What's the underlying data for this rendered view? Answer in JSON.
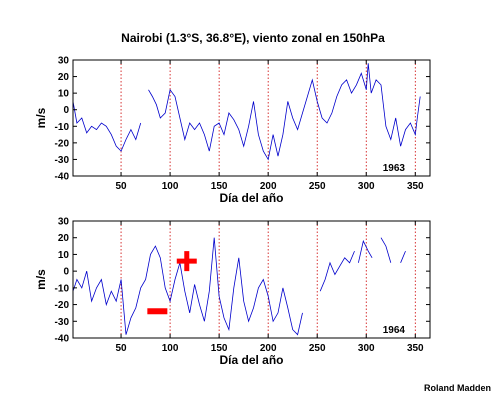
{
  "title": "Nairobi (1.3°S, 36.8°E), viento zonal en 150hPa",
  "credit": "Roland Madden",
  "line_color": "#0000cc",
  "dashed_color": "#cc0000",
  "marker_color": "#ff0000",
  "chart_data": [
    {
      "type": "line",
      "year_label": "1963",
      "xlabel": "Día del año",
      "ylabel": "m/s",
      "xlim": [
        1,
        365
      ],
      "ylim": [
        -40,
        30
      ],
      "xticks": [
        50,
        100,
        150,
        200,
        250,
        300,
        350
      ],
      "yticks": [
        -40,
        -30,
        -20,
        -10,
        0,
        10,
        20,
        30
      ],
      "dashed_vlines": [
        50,
        100,
        150,
        200,
        250,
        300,
        350
      ],
      "series": [
        {
          "x": [
            1,
            5,
            10,
            15,
            20,
            25,
            30,
            35,
            40,
            45,
            50,
            55,
            60,
            65,
            70,
            null,
            78,
            82,
            86,
            90,
            95,
            100,
            105,
            110,
            115,
            120,
            125,
            130,
            135,
            140,
            145,
            150,
            155,
            160,
            165,
            170,
            175,
            180,
            185,
            190,
            195,
            200,
            205,
            210,
            215,
            220,
            225,
            230,
            235,
            240,
            245,
            250,
            255,
            260,
            265,
            270,
            275,
            280,
            285,
            290,
            295,
            300,
            302,
            305,
            310,
            315,
            320,
            325,
            330,
            335,
            340,
            345,
            350,
            352,
            355
          ],
          "y": [
            5,
            -8,
            -5,
            -14,
            -10,
            -12,
            -8,
            -10,
            -15,
            -22,
            -25,
            -18,
            -12,
            -18,
            -8,
            null,
            12,
            8,
            3,
            -5,
            -2,
            12,
            8,
            -5,
            -18,
            -8,
            -12,
            -8,
            -15,
            -25,
            -10,
            -8,
            -15,
            -2,
            -6,
            -12,
            -22,
            -10,
            5,
            -15,
            -25,
            -30,
            -15,
            -28,
            -15,
            5,
            -5,
            -12,
            -2,
            8,
            18,
            5,
            -5,
            -8,
            -2,
            8,
            15,
            18,
            10,
            15,
            22,
            12,
            28,
            10,
            18,
            15,
            -10,
            -18,
            -5,
            -22,
            -12,
            -8,
            -15,
            -5,
            8
          ]
        }
      ]
    },
    {
      "type": "line",
      "year_label": "1964",
      "xlabel": "Día del año",
      "ylabel": "m/s",
      "xlim": [
        1,
        365
      ],
      "ylim": [
        -40,
        30
      ],
      "xticks": [
        50,
        100,
        150,
        200,
        250,
        300,
        350
      ],
      "yticks": [
        -40,
        -30,
        -20,
        -10,
        0,
        10,
        20,
        30
      ],
      "dashed_vlines": [
        50,
        100,
        150,
        200,
        250,
        300,
        350
      ],
      "annotations": [
        {
          "symbol": "minus",
          "x": 87,
          "y": -24
        },
        {
          "symbol": "plus",
          "x": 117,
          "y": 6
        }
      ],
      "series": [
        {
          "x": [
            1,
            5,
            10,
            15,
            20,
            25,
            30,
            35,
            40,
            45,
            50,
            55,
            60,
            65,
            70,
            75,
            80,
            85,
            90,
            95,
            100,
            105,
            110,
            115,
            120,
            125,
            130,
            135,
            140,
            145,
            150,
            155,
            160,
            165,
            170,
            175,
            180,
            185,
            190,
            195,
            200,
            205,
            210,
            215,
            220,
            225,
            230,
            235,
            null,
            253,
            258,
            263,
            268,
            273,
            278,
            283,
            288,
            null,
            292,
            297,
            302,
            306,
            null,
            315,
            320,
            325,
            null,
            335,
            340
          ],
          "y": [
            -12,
            -5,
            -10,
            0,
            -18,
            -10,
            -5,
            -20,
            -12,
            -18,
            -5,
            -38,
            -28,
            -22,
            -10,
            -5,
            10,
            15,
            8,
            -10,
            -18,
            -5,
            5,
            -12,
            -25,
            -8,
            -20,
            -30,
            -12,
            20,
            -15,
            -28,
            -35,
            -10,
            8,
            -18,
            -30,
            -22,
            -10,
            -5,
            -15,
            -30,
            -25,
            -10,
            -22,
            -35,
            -38,
            -25,
            null,
            -12,
            -5,
            5,
            -2,
            3,
            8,
            5,
            12,
            null,
            5,
            18,
            12,
            8,
            null,
            20,
            15,
            5,
            null,
            5,
            12
          ]
        }
      ]
    }
  ]
}
